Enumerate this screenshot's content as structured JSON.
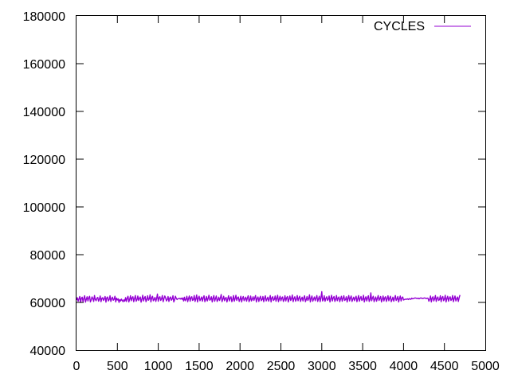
{
  "chart_data": {
    "type": "line",
    "title": "",
    "xlabel": "",
    "ylabel": "",
    "xlim": [
      0,
      5000
    ],
    "ylim": [
      40000,
      180000
    ],
    "x_ticks": [
      0,
      500,
      1000,
      1500,
      2000,
      2500,
      3000,
      3500,
      4000,
      4500,
      5000
    ],
    "y_ticks": [
      40000,
      60000,
      80000,
      100000,
      120000,
      140000,
      160000,
      180000
    ],
    "grid": false,
    "legend_position": "top-right",
    "series": [
      {
        "name": "CYCLES",
        "color": "#9400d3",
        "x_step": 10,
        "values": [
          61000,
          62000,
          60500,
          61500,
          62500,
          60000,
          61800,
          62200,
          60300,
          61700,
          62800,
          60100,
          61300,
          62400,
          60600,
          61900,
          62600,
          60200,
          61100,
          62300,
          61600,
          60400,
          62900,
          61200,
          60700,
          61800,
          62100,
          60500,
          61400,
          62700,
          60300,
          61700,
          62000,
          60800,
          61500,
          62500,
          60100,
          61900,
          62300,
          60600,
          61200,
          62800,
          60400,
          61600,
          62200,
          60900,
          61300,
          62600,
          60200,
          61800,
          61000,
          61500,
          60000,
          61200,
          60600,
          61400,
          60800,
          60300,
          61100,
          60500,
          62000,
          60400,
          61800,
          62600,
          60200,
          61300,
          62800,
          60700,
          61900,
          62400,
          60300,
          61600,
          62900,
          60500,
          61100,
          62700,
          60800,
          61700,
          62300,
          60100,
          61400,
          63000,
          60600,
          61800,
          62500,
          60300,
          61200,
          62800,
          60900,
          61500,
          63200,
          60200,
          61900,
          62600,
          60700,
          61300,
          62100,
          60400,
          61700,
          63500,
          60500,
          61900,
          62400,
          60800,
          61500,
          62900,
          60300,
          61600,
          62700,
          61900,
          60600,
          61200,
          62500,
          60400,
          61800,
          62300,
          60900,
          61400,
          62800,
          60200,
          61100,
          62600,
          61700,
          61200,
          61500,
          61600,
          61700,
          61400,
          61800,
          61300,
          61900,
          60600,
          62200,
          60700,
          61300,
          62600,
          60300,
          61600,
          62700,
          60500,
          61900,
          62400,
          60800,
          61200,
          62900,
          60400,
          61500,
          63100,
          60200,
          61800,
          62600,
          60700,
          61400,
          62300,
          60500,
          61900,
          62800,
          60300,
          61200,
          62500,
          60600,
          61700,
          63000,
          60900,
          61300,
          62400,
          60200,
          61800,
          62900,
          60500,
          61600,
          62700,
          60400,
          61100,
          62200,
          60800,
          61900,
          63300,
          60300,
          61400,
          62600,
          60700,
          61700,
          62100,
          60200,
          61500,
          62800,
          60600,
          61800,
          62400,
          60300,
          61200,
          62900,
          60500,
          61600,
          63000,
          60800,
          61900,
          62300,
          60400,
          61300,
          62600,
          60200,
          61700,
          62500,
          60700,
          61500,
          62200,
          60500,
          61800,
          62800,
          60300,
          61100,
          62700,
          60600,
          61400,
          62400,
          60800,
          61900,
          62900,
          60200,
          61600,
          62300,
          60400,
          61700,
          62600,
          60700,
          61200,
          62500,
          60300,
          61800,
          62800,
          60600,
          61400,
          62200,
          60500,
          61600,
          62900,
          60200,
          61900,
          62400,
          60800,
          61300,
          62700,
          60500,
          61700,
          63000,
          60300,
          61500,
          62600,
          60700,
          61800,
          62300,
          60400,
          61200,
          62800,
          60600,
          61900,
          62500,
          60200,
          61400,
          62700,
          60800,
          61600,
          63100,
          60300,
          61700,
          62400,
          60500,
          61300,
          62900,
          60700,
          61800,
          62600,
          60400,
          61500,
          62200,
          60600,
          61900,
          62800,
          60300,
          61200,
          62500,
          60800,
          61600,
          63200,
          60200,
          61700,
          62700,
          60500,
          61400,
          62300,
          60700,
          61800,
          62900,
          60400,
          61500,
          62600,
          60300,
          61900,
          64500,
          60600,
          61200,
          62800,
          60500,
          61700,
          62400,
          60800,
          61400,
          62700,
          60200,
          61600,
          63000,
          60600,
          61900,
          62500,
          60400,
          61300,
          62900,
          60700,
          61800,
          62300,
          60300,
          61500,
          62600,
          60500,
          61700,
          62800,
          60800,
          61200,
          62400,
          60200,
          61600,
          62900,
          60600,
          61900,
          62700,
          60400,
          61400,
          62200,
          60700,
          61800,
          62600,
          60300,
          61500,
          62900,
          60500,
          61700,
          62500,
          60800,
          61300,
          63000,
          60200,
          61600,
          62400,
          60600,
          61900,
          62800,
          60400,
          61200,
          64000,
          60700,
          61800,
          62600,
          60300,
          61400,
          62300,
          60500,
          61700,
          62900,
          60800,
          61600,
          62500,
          60200,
          61300,
          62700,
          60600,
          61900,
          62400,
          60400,
          61500,
          62800,
          60700,
          61800,
          62600,
          60300,
          61200,
          62200,
          60500,
          61700,
          62900,
          60800,
          61400,
          62500,
          60200,
          61600,
          62700,
          60600,
          61900,
          62300,
          61000,
          61200,
          61300,
          61400,
          61300,
          61500,
          61200,
          61600,
          61400,
          61300,
          61800,
          61500,
          61600,
          61700,
          61900,
          61800,
          61700,
          61600,
          61800,
          61500,
          61700,
          61900,
          61800,
          61600,
          61700,
          61800,
          61900,
          61700,
          61600,
          61800,
          61700,
          60500,
          61300,
          62700,
          60200,
          61800,
          62400,
          60600,
          61500,
          62900,
          60400,
          61700,
          62300,
          60800,
          61200,
          62800,
          60300,
          61900,
          62500,
          60700,
          61400,
          63000,
          60200,
          61600,
          62600,
          60500,
          61800,
          62400,
          60800,
          61300,
          62900,
          60300,
          61700,
          62700,
          60600,
          61500,
          62300,
          60400,
          61900,
          63100
        ]
      }
    ]
  }
}
